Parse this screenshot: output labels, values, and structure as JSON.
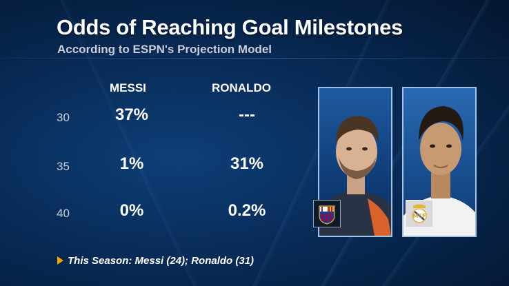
{
  "header": {
    "title": "Odds of Reaching Goal Milestones",
    "subtitle": "According to ESPN's Projection Model"
  },
  "table": {
    "columns": [
      "MESSI",
      "RONALDO"
    ],
    "rows": [
      {
        "label": "30",
        "messi": "37%",
        "ronaldo": "---"
      },
      {
        "label": "35",
        "messi": "1%",
        "ronaldo": "31%"
      },
      {
        "label": "40",
        "messi": "0%",
        "ronaldo": "0.2%"
      }
    ]
  },
  "footer": {
    "text": "This Season: Messi (24); Ronaldo (31)"
  },
  "colors": {
    "background": "#082b57",
    "accent_arrow": "#f0a500",
    "text": "#ffffff",
    "muted_text": "#c9cfd8"
  },
  "icons": {
    "messi_photo": "player-photo-messi",
    "ronaldo_photo": "player-photo-ronaldo",
    "barcelona_crest": "fc-barcelona-crest-icon",
    "real_madrid_crest": "real-madrid-crest-icon",
    "bullet": "play-arrow-icon"
  }
}
